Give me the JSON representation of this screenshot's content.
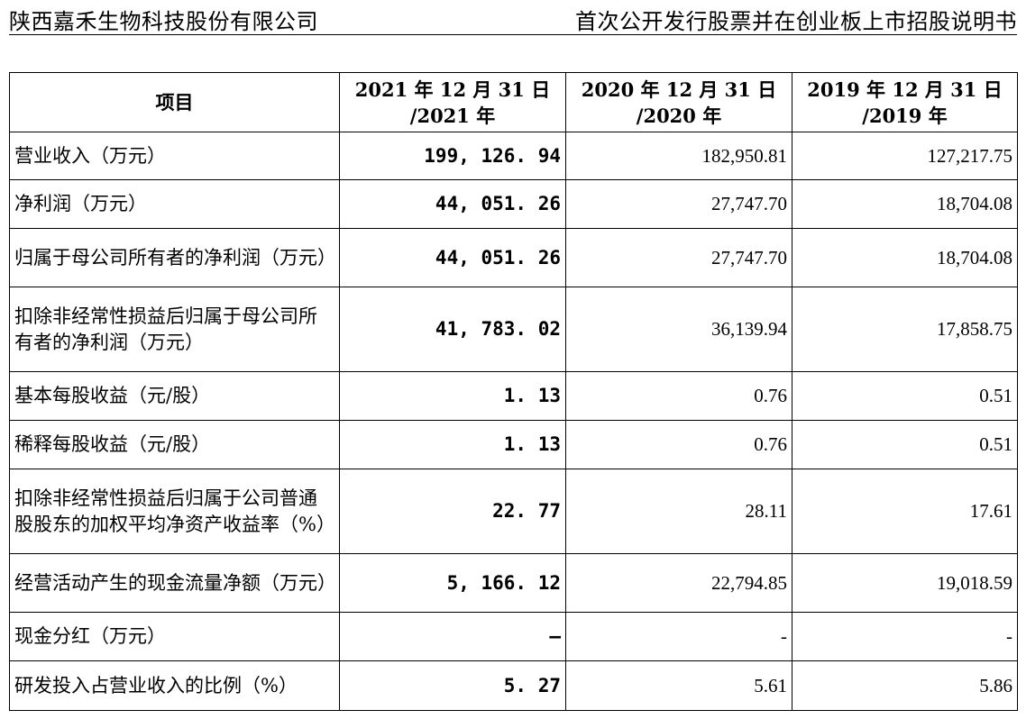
{
  "header": {
    "company": "陕西嘉禾生物科技股份有限公司",
    "document": "首次公开发行股票并在创业板上市招股说明书"
  },
  "table": {
    "columns": [
      {
        "label": "项目"
      },
      {
        "line1": "2021 年 12 月 31 日",
        "line2": "/2021 年"
      },
      {
        "line1": "2020 年 12 月 31 日",
        "line2": "/2020 年"
      },
      {
        "line1": "2019 年 12 月 31 日",
        "line2": "/2019 年"
      }
    ],
    "rows": [
      {
        "item": "营业收入（万元）",
        "y2021": "199, 126. 94",
        "y2020": "182,950.81",
        "y2019": "127,217.75"
      },
      {
        "item": "净利润（万元）",
        "y2021": "44, 051. 26",
        "y2020": "27,747.70",
        "y2019": "18,704.08"
      },
      {
        "item": "归属于母公司所有者的净利润（万元）",
        "y2021": "44, 051. 26",
        "y2020": "27,747.70",
        "y2019": "18,704.08"
      },
      {
        "item": "扣除非经常性损益后归属于母公司所有者的净利润（万元）",
        "y2021": "41, 783. 02",
        "y2020": "36,139.94",
        "y2019": "17,858.75"
      },
      {
        "item": "基本每股收益（元/股）",
        "y2021": "1. 13",
        "y2020": "0.76",
        "y2019": "0.51"
      },
      {
        "item": "稀释每股收益（元/股）",
        "y2021": "1. 13",
        "y2020": "0.76",
        "y2019": "0.51"
      },
      {
        "item": "扣除非经常性损益后归属于公司普通股股东的加权平均净资产收益率（%）",
        "y2021": "22. 77",
        "y2020": "28.11",
        "y2019": "17.61"
      },
      {
        "item": "经营活动产生的现金流量净额（万元）",
        "y2021": "5, 166. 12",
        "y2020": "22,794.85",
        "y2019": "19,018.59"
      },
      {
        "item": "现金分红（万元）",
        "y2021": "–",
        "y2020": "-",
        "y2019": "-"
      },
      {
        "item": "研发投入占营业收入的比例（%）",
        "y2021": "5. 27",
        "y2020": "5.61",
        "y2019": "5.86"
      }
    ]
  }
}
